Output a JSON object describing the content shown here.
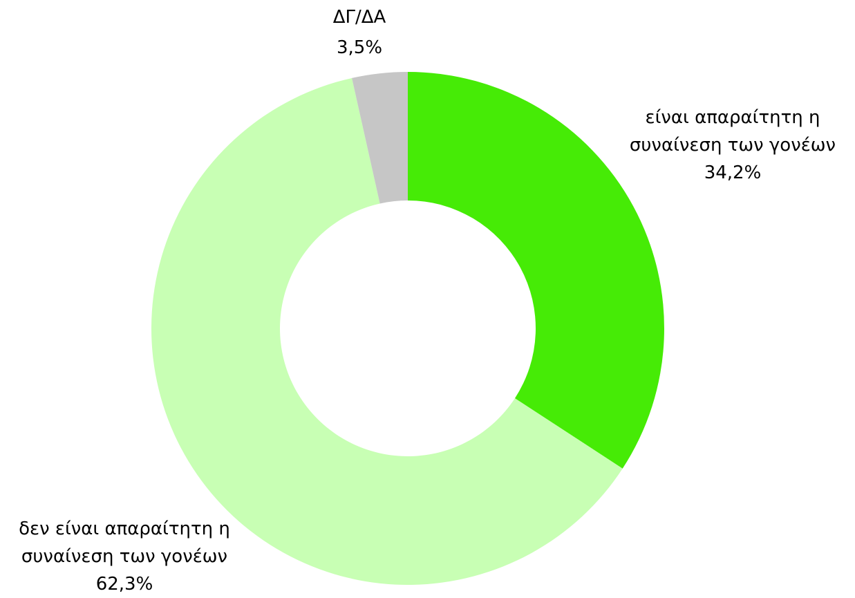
{
  "chart_data": {
    "type": "donut",
    "categories": [
      "είναι απαραίτητη η συναίνεση των γονέων",
      "δεν είναι απαραίτητη η συναίνεση των γονέων",
      "ΔΓ/ΔΑ"
    ],
    "values": [
      34.2,
      62.3,
      3.5
    ],
    "value_labels": [
      "34,2%",
      "62,3%",
      "3,5%"
    ],
    "colors": [
      "#46eb06",
      "#c8ffb4",
      "#c6c6c6"
    ]
  }
}
